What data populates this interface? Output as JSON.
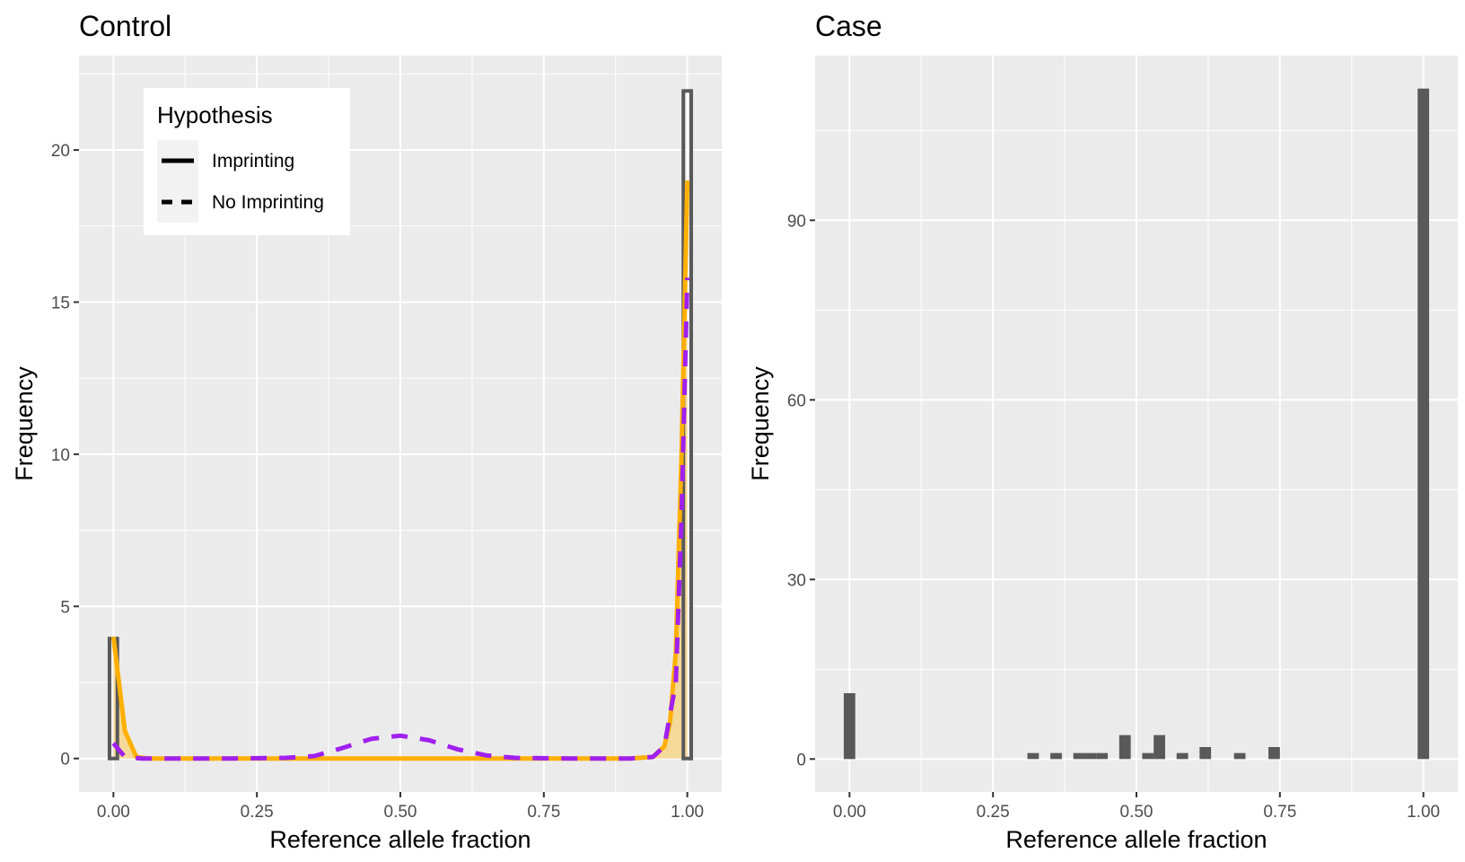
{
  "colors": {
    "panel_bg": "#ebebeb",
    "grid": "#ffffff",
    "bar": "#595959",
    "imprinting": "#ffb000",
    "no_imprinting": "#a020f0",
    "fill_area": "#f7d68a"
  },
  "chart_data": [
    {
      "type": "bar",
      "title": "Control",
      "xlabel": "Reference allele fraction",
      "ylabel": "Frequency",
      "xlim": [
        -0.06,
        1.06
      ],
      "ylim": [
        -1.1,
        23.1
      ],
      "xticks": [
        0,
        0.25,
        0.5,
        0.75,
        1
      ],
      "xtick_labels": [
        "0.00",
        "0.25",
        "0.50",
        "0.75",
        "1.00"
      ],
      "yticks": [
        0,
        5,
        10,
        15,
        20
      ],
      "ytick_labels": [
        "0",
        "5",
        "10",
        "15",
        "20"
      ],
      "grid": true,
      "bar_width": 0.02,
      "bars": [
        {
          "x": 0.0,
          "count": 4
        },
        {
          "x": 1.0,
          "count": 22
        }
      ],
      "legend": {
        "title": "Hypothesis",
        "placement": "top-left",
        "entries": [
          "Imprinting",
          "No Imprinting"
        ]
      },
      "series": [
        {
          "name": "Imprinting",
          "linestyle": "solid",
          "x": [
            0,
            0.02,
            0.04,
            0.06,
            0.1,
            0.2,
            0.3,
            0.4,
            0.5,
            0.6,
            0.7,
            0.8,
            0.9,
            0.94,
            0.96,
            0.97,
            0.98,
            0.99,
            1.0
          ],
          "y": [
            4.0,
            0.9,
            0.05,
            0.0,
            0.0,
            0.0,
            0.0,
            0.0,
            0.0,
            0.0,
            0.0,
            0.0,
            0.0,
            0.05,
            0.4,
            1.2,
            3.5,
            10.0,
            19.0
          ]
        },
        {
          "name": "No Imprinting",
          "linestyle": "dashed",
          "x": [
            0,
            0.02,
            0.05,
            0.1,
            0.2,
            0.3,
            0.35,
            0.4,
            0.45,
            0.5,
            0.55,
            0.6,
            0.65,
            0.7,
            0.8,
            0.9,
            0.94,
            0.96,
            0.98,
            0.99,
            1.0
          ],
          "y": [
            0.5,
            0.05,
            0.0,
            0.0,
            0.0,
            0.02,
            0.08,
            0.35,
            0.65,
            0.75,
            0.6,
            0.3,
            0.1,
            0.02,
            0.0,
            0.0,
            0.05,
            0.4,
            2.5,
            8.0,
            15.8
          ]
        }
      ]
    },
    {
      "type": "bar",
      "title": "Case",
      "xlabel": "Reference allele fraction",
      "ylabel": "Frequency",
      "xlim": [
        -0.06,
        1.06
      ],
      "ylim": [
        -5.5,
        117.5
      ],
      "xticks": [
        0,
        0.25,
        0.5,
        0.75,
        1
      ],
      "xtick_labels": [
        "0.00",
        "0.25",
        "0.50",
        "0.75",
        "1.00"
      ],
      "yticks": [
        0,
        30,
        60,
        90
      ],
      "ytick_labels": [
        "0",
        "30",
        "60",
        "90"
      ],
      "grid": true,
      "bar_width": 0.02,
      "bars": [
        {
          "x": 0.0,
          "count": 11
        },
        {
          "x": 0.32,
          "count": 1
        },
        {
          "x": 0.36,
          "count": 1
        },
        {
          "x": 0.4,
          "count": 1
        },
        {
          "x": 0.42,
          "count": 1
        },
        {
          "x": 0.44,
          "count": 1
        },
        {
          "x": 0.48,
          "count": 4
        },
        {
          "x": 0.52,
          "count": 1
        },
        {
          "x": 0.54,
          "count": 4
        },
        {
          "x": 0.58,
          "count": 1
        },
        {
          "x": 0.62,
          "count": 2
        },
        {
          "x": 0.68,
          "count": 1
        },
        {
          "x": 0.74,
          "count": 2
        },
        {
          "x": 1.0,
          "count": 112
        }
      ]
    }
  ]
}
